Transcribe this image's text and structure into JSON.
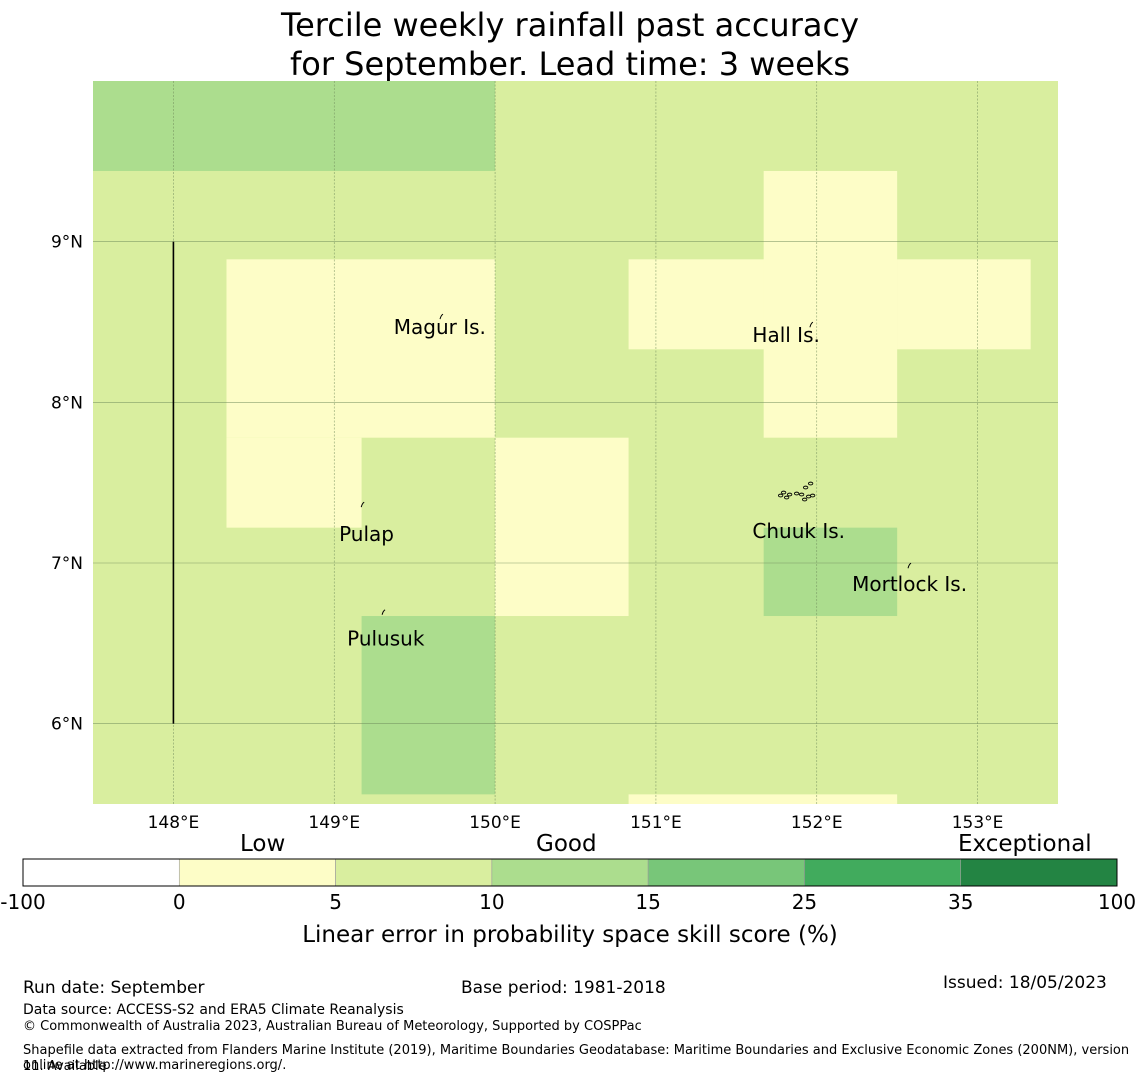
{
  "title": {
    "line1": "Tercile weekly rainfall past accuracy",
    "line2": "for September. Lead time: 3 weeks"
  },
  "map": {
    "lon_range": [
      147.5,
      153.5
    ],
    "lat_range": [
      5.5,
      10.0
    ],
    "lon_ticks": [
      {
        "value": 148,
        "label": "148°E"
      },
      {
        "value": 149,
        "label": "149°E"
      },
      {
        "value": 150,
        "label": "150°E"
      },
      {
        "value": 151,
        "label": "151°E"
      },
      {
        "value": 152,
        "label": "152°E"
      },
      {
        "value": 153,
        "label": "153°E"
      }
    ],
    "lat_ticks": [
      {
        "value": 9,
        "label": "9°N"
      },
      {
        "value": 8,
        "label": "8°N"
      },
      {
        "value": 7,
        "label": "7°N"
      },
      {
        "value": 6,
        "label": "6°N"
      }
    ],
    "colors": {
      "low": "#fdfdc7",
      "good": "#d9ee9f",
      "good_plus": "#acdd8e",
      "grid": "#6e8a5a"
    },
    "cells": [
      {
        "lon": [
          147.5,
          150.0
        ],
        "lat": [
          9.44,
          10.0
        ],
        "cls": "good_plus"
      },
      {
        "lon": [
          148.33,
          150.0
        ],
        "lat": [
          7.78,
          8.89
        ],
        "cls": "low"
      },
      {
        "lon": [
          148.33,
          149.17
        ],
        "lat": [
          7.22,
          7.78
        ],
        "cls": "low"
      },
      {
        "lon": [
          150.0,
          150.83
        ],
        "lat": [
          6.67,
          7.78
        ],
        "cls": "low"
      },
      {
        "lon": [
          149.17,
          150.0
        ],
        "lat": [
          5.56,
          6.67
        ],
        "cls": "good_plus"
      },
      {
        "lon": [
          150.83,
          153.33
        ],
        "lat": [
          8.33,
          8.89
        ],
        "cls": "low"
      },
      {
        "lon": [
          151.67,
          152.5
        ],
        "lat": [
          7.78,
          9.44
        ],
        "cls": "low"
      },
      {
        "lon": [
          151.67,
          152.5
        ],
        "lat": [
          6.67,
          7.22
        ],
        "cls": "good_plus"
      },
      {
        "lon": [
          150.83,
          152.5
        ],
        "lat": [
          5.5,
          5.56
        ],
        "cls": "low"
      }
    ],
    "boundary_line": {
      "lon": 148.0,
      "lat": [
        6.0,
        9.0
      ]
    },
    "islands": [
      {
        "name": "Magur Is.",
        "lon": 149.67,
        "lat": 8.53,
        "label_lon": 149.37,
        "label_lat": 8.47
      },
      {
        "name": "Hall Is.",
        "lon": 151.97,
        "lat": 8.48,
        "label_lon": 151.6,
        "label_lat": 8.42
      },
      {
        "name": "Pulap",
        "lon": 149.18,
        "lat": 7.36,
        "label_lon": 149.03,
        "label_lat": 7.18
      },
      {
        "name": "Chuuk Is.",
        "lon": 151.85,
        "lat": 7.42,
        "label_lon": 151.6,
        "label_lat": 7.2
      },
      {
        "name": "Mortlock Is.",
        "lon": 152.58,
        "lat": 6.98,
        "label_lon": 152.22,
        "label_lat": 6.87
      },
      {
        "name": "Pulusuk",
        "lon": 149.31,
        "lat": 6.69,
        "label_lon": 149.08,
        "label_lat": 6.53
      }
    ]
  },
  "colorbar": {
    "category_labels": [
      "Low",
      "Good",
      "Exceptional"
    ],
    "ticks": [
      "-100",
      "0",
      "5",
      "10",
      "15",
      "25",
      "35",
      "100"
    ],
    "colors": [
      "#ffffff",
      "#fdfdc7",
      "#d9ee9f",
      "#acdd8e",
      "#78c679",
      "#41ab5d",
      "#238443"
    ],
    "label": "Linear error in probability space skill score (%)"
  },
  "footer": {
    "run_date": "Run date: September",
    "base_period": "Base period: 1981-2018",
    "issued": "Issued: 18/05/2023",
    "data_source": "Data source: ACCESS-S2 and ERA5 Climate Reanalysis",
    "copyright": "© Commonwealth of Australia 2023, Australian Bureau of Meteorology, Supported by COSPPac",
    "shapefile_line1": "Shapefile data extracted from Flanders Marine Institute (2019), Maritime Boundaries Geodatabase: Maritime Boundaries and Exclusive Economic Zones (200NM), version 11. Available",
    "shapefile_line2": "online at http://www.marineregions.org/."
  }
}
